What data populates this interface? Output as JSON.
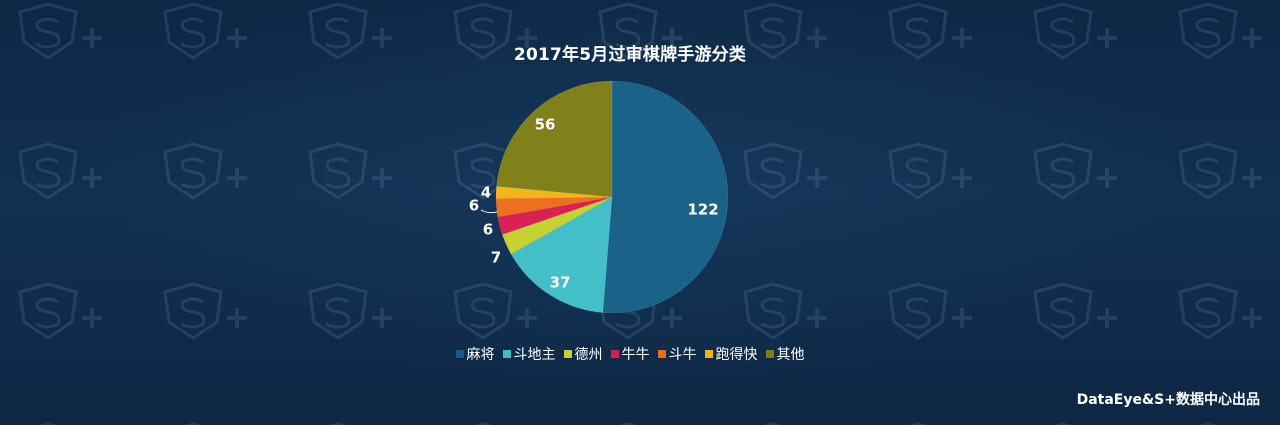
{
  "chart_data": {
    "type": "pie",
    "title": "2017年5月过审棋牌手游分类",
    "slices": [
      {
        "name": "麻将",
        "value": 122,
        "color": "#145d86"
      },
      {
        "name": "斗地主",
        "value": 37,
        "color": "#3ebdc6"
      },
      {
        "name": "德州",
        "value": 7,
        "color": "#c3d22b"
      },
      {
        "name": "牛牛",
        "value": 6,
        "color": "#d81b4e"
      },
      {
        "name": "斗牛",
        "value": 6,
        "color": "#ee6c16"
      },
      {
        "name": "跑得快",
        "value": 4,
        "color": "#f2b414"
      },
      {
        "name": "其他",
        "value": 56,
        "color": "#7d7d15"
      }
    ],
    "legend_position": "bottom",
    "start_angle": "top",
    "direction": "clockwise"
  },
  "footer": {
    "credit": "DataEye&S+数据中心出品"
  }
}
